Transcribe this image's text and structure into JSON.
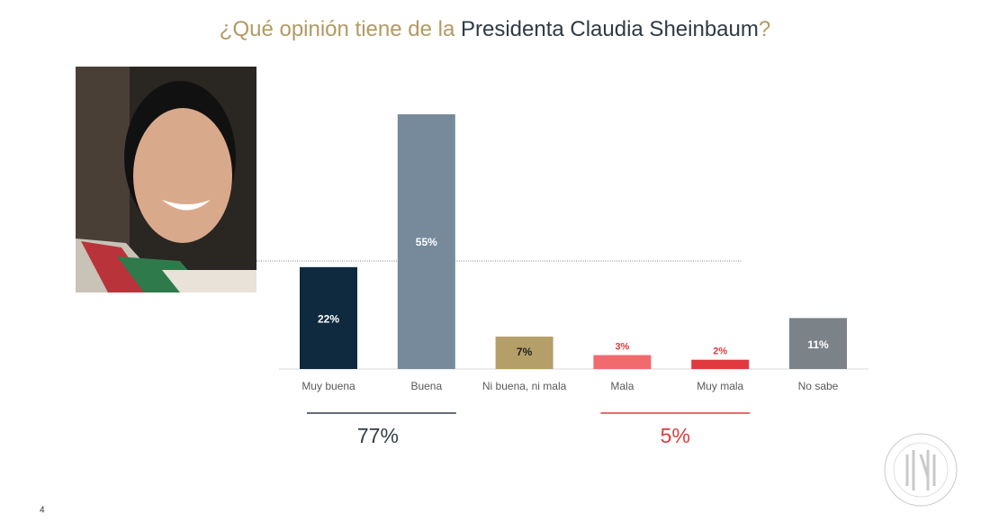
{
  "chart_data": {
    "type": "bar",
    "title": [
      "¿Qué opinión tiene de la ",
      "Presidenta Claudia Sheinbaum",
      "?"
    ],
    "title_colors": [
      "#b39a63",
      "#2f3a44",
      "#b39a63"
    ],
    "categories": [
      "Muy buena",
      "Buena",
      "Ni buena, ni mala",
      "Mala",
      "Muy mala",
      "No sabe"
    ],
    "values": [
      22,
      55,
      7,
      3,
      2,
      11
    ],
    "value_labels": [
      "22%",
      "55%",
      "7%",
      "3%",
      "2%",
      "11%"
    ],
    "colors": [
      "#0f2a3f",
      "#768a9c",
      "#b59f68",
      "#f06a6e",
      "#e03a3e",
      "#7b8288"
    ],
    "annotations": [
      {
        "text": "77%",
        "color": "#333d47"
      },
      {
        "text": "5%",
        "color": "#e03a3e"
      }
    ]
  },
  "page_number": "4"
}
